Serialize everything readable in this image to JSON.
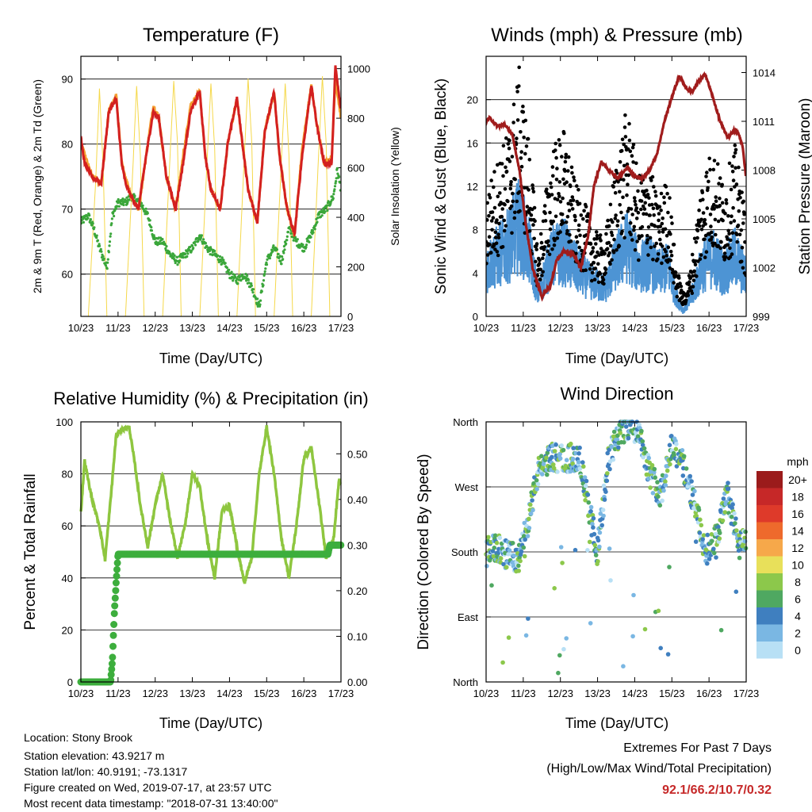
{
  "x_ticks": [
    "10/23",
    "11/23",
    "12/23",
    "13/23",
    "14/23",
    "15/23",
    "16/23",
    "17/23"
  ],
  "x_label": "Time (Day/UTC)",
  "panels": {
    "temp": {
      "title": "Temperature (F)",
      "ylabel_left": "2m & 9m T (Red, Orange) & 2m Td (Green)",
      "ylabel_right": "Solar Insolation (Yellow)",
      "y_ticks": [
        60,
        70,
        80,
        90
      ],
      "y2_ticks": [
        0,
        200,
        400,
        600,
        800,
        1000
      ]
    },
    "wind": {
      "title": "Winds (mph) & Pressure (mb)",
      "ylabel_left": "Sonic Wind & Gust (Blue, Black)",
      "ylabel_right": "Station Pressure (Maroon)",
      "y_ticks": [
        0,
        4,
        8,
        12,
        16,
        20
      ],
      "y2_ticks": [
        999,
        1002,
        1005,
        1008,
        1011,
        1014
      ]
    },
    "rh": {
      "title": "Relative Humidity (%) & Precipitation (in)",
      "ylabel_left": "Percent & Total Rainfall",
      "y_ticks": [
        0,
        20,
        40,
        60,
        80,
        100
      ],
      "y2_ticks": [
        "0.00",
        "0.10",
        "0.20",
        "0.30",
        "0.40",
        "0.50"
      ]
    },
    "dir": {
      "title": "Wind Direction",
      "ylabel_left": "Direction (Colored By Speed)",
      "y_ticks": [
        "North",
        "East",
        "South",
        "West",
        "North"
      ],
      "legend_title": "mph",
      "legend_labels": [
        "20+",
        "18",
        "16",
        "14",
        "12",
        "10",
        "8",
        "6",
        "4",
        "2",
        "0"
      ]
    }
  },
  "colors": {
    "temp_2m": "#d32020",
    "temp_9m": "#f4a030",
    "dewpoint": "#3aa63a",
    "solar": "#f5d84a",
    "wind": "#4d94d4",
    "gust": "#000000",
    "pressure": "#a01c1c",
    "rh": "#8ec63f",
    "precip": "#3dae3d",
    "speed_scale": [
      "#9b1b1b",
      "#c62828",
      "#de3a2a",
      "#ee6a2c",
      "#f6a84a",
      "#e8e05a",
      "#8cc84b",
      "#4fa861",
      "#3f7fbf",
      "#7ab7e3",
      "#b8e0f5"
    ]
  },
  "chart_data": [
    {
      "type": "line",
      "title": "Temperature (F)",
      "xlabel": "Time (Day/UTC)",
      "ylabel": "2m & 9m T (Red, Orange) & 2m Td (Green)",
      "y2label": "Solar Insolation (Yellow)",
      "x_range": [
        23,
        30
      ],
      "ylim": [
        53.5,
        93.5
      ],
      "y2lim": [
        0,
        1050
      ],
      "series": [
        {
          "x": [
            23.0,
            23.1,
            23.3,
            23.55,
            23.75,
            23.95,
            24.1,
            24.2,
            24.35,
            24.55,
            24.75,
            24.95,
            25.1,
            25.3,
            25.55,
            25.75,
            25.95,
            26.2,
            26.35,
            26.5,
            26.75,
            26.95,
            27.2,
            27.35,
            27.5,
            27.75,
            27.95,
            28.2,
            28.35,
            28.55,
            28.75,
            28.95,
            29.2,
            29.35,
            29.55,
            29.75,
            29.85,
            30.0
          ],
          "y": [
            81,
            77,
            75,
            74,
            85,
            87,
            77,
            74,
            72,
            70,
            78,
            85,
            84,
            75,
            70,
            77,
            85,
            88,
            78,
            73,
            70,
            80,
            87,
            80,
            73,
            68,
            82,
            88,
            78,
            70,
            66,
            78,
            89,
            83,
            77,
            77,
            92,
            85
          ]
        },
        {
          "x": [
            23.0,
            23.3,
            23.55,
            23.75,
            23.95,
            24.1,
            24.35,
            24.55,
            24.75,
            24.95,
            25.1,
            25.3,
            25.55,
            25.75,
            25.95,
            26.2,
            26.35,
            26.5,
            26.75,
            26.95,
            27.2,
            27.35,
            27.5,
            27.75,
            27.95,
            28.2,
            28.35,
            28.55,
            28.75,
            28.95,
            29.2,
            29.35,
            29.55,
            29.75,
            29.85,
            30.0
          ],
          "y": [
            80,
            75,
            74,
            85,
            87.5,
            77,
            72,
            70,
            78,
            86,
            84,
            75,
            70,
            78,
            86,
            88,
            78,
            73,
            70,
            80,
            87,
            80,
            73,
            68,
            82,
            88,
            78,
            70,
            66,
            79,
            89,
            83,
            77,
            78,
            90,
            84
          ]
        },
        {
          "x": [
            23.0,
            23.2,
            23.35,
            23.5,
            23.7,
            23.85,
            24.0,
            24.2,
            24.35,
            24.6,
            24.8,
            25.0,
            25.2,
            25.4,
            25.6,
            25.8,
            26.0,
            26.2,
            26.4,
            26.6,
            26.8,
            27.0,
            27.2,
            27.4,
            27.6,
            27.8,
            28.0,
            28.2,
            28.4,
            28.6,
            28.8,
            29.0,
            29.2,
            29.4,
            29.6,
            29.8,
            29.9,
            30.0
          ],
          "y": [
            68,
            69,
            67,
            64,
            61,
            69,
            71,
            71,
            72,
            71,
            69,
            65,
            65,
            63,
            62,
            63,
            64,
            66,
            64,
            63,
            62,
            60,
            59,
            60,
            58,
            55,
            62,
            64,
            62,
            67,
            65,
            64,
            66,
            69,
            70,
            72,
            76,
            73
          ]
        },
        {
          "x": [
            23.0,
            23.2,
            23.4,
            23.5,
            23.6,
            23.7,
            24.2,
            24.4,
            24.5,
            24.6,
            24.7,
            25.2,
            25.4,
            25.5,
            25.6,
            25.7,
            26.2,
            26.4,
            26.5,
            26.6,
            26.7,
            27.2,
            27.4,
            27.5,
            27.6,
            27.7,
            28.2,
            28.4,
            28.5,
            28.6,
            28.7,
            29.2,
            29.4,
            29.5,
            29.6,
            29.7
          ],
          "y": [
            0,
            0,
            550,
            920,
            600,
            0,
            0,
            600,
            930,
            650,
            0,
            0,
            650,
            950,
            700,
            0,
            0,
            640,
            940,
            680,
            0,
            0,
            650,
            960,
            700,
            0,
            0,
            640,
            940,
            650,
            0,
            0,
            660,
            970,
            700,
            0
          ]
        }
      ]
    },
    {
      "type": "line",
      "title": "Winds (mph) & Pressure (mb)",
      "xlabel": "Time (Day/UTC)",
      "ylabel": "Sonic Wind & Gust (Blue, Black)",
      "y2label": "Station Pressure (Maroon)",
      "x_range": [
        23,
        30
      ],
      "ylim": [
        0,
        24
      ],
      "y2lim": [
        999,
        1015
      ],
      "series": [
        {
          "x": [
            23.0,
            23.3,
            23.6,
            23.9,
            24.2,
            24.4,
            24.6,
            24.8,
            25.1,
            25.4,
            25.7,
            25.9,
            26.2,
            26.5,
            26.8,
            27.1,
            27.4,
            27.6,
            27.9,
            28.1,
            28.3,
            28.5,
            28.8,
            29.1,
            29.4,
            29.7,
            30.0
          ],
          "y": [
            4.5,
            5.5,
            6.5,
            8.5,
            5.5,
            2.0,
            4.0,
            5.5,
            6.0,
            4.5,
            3.5,
            3.0,
            2.5,
            5.0,
            6.5,
            4.5,
            5.0,
            4.0,
            4.5,
            2.0,
            0.5,
            1.5,
            4.5,
            5.5,
            4.0,
            5.5,
            3.5
          ]
        },
        {
          "x": [
            23.0,
            23.3,
            23.6,
            23.9,
            24.2,
            24.4,
            24.6,
            24.8,
            25.1,
            25.4,
            25.7,
            25.9,
            26.2,
            26.5,
            26.8,
            27.1,
            27.4,
            27.6,
            27.9,
            28.1,
            28.3,
            28.5,
            28.8,
            29.1,
            29.4,
            29.7,
            30.0
          ],
          "y": [
            8.0,
            10.0,
            12.0,
            16.0,
            10.5,
            4.0,
            8.0,
            11.0,
            12.0,
            8.5,
            7.0,
            5.5,
            5.0,
            10.0,
            13.5,
            9.0,
            10.0,
            7.5,
            9.0,
            3.5,
            1.5,
            3.0,
            9.0,
            11.0,
            8.5,
            11.0,
            6.5
          ]
        },
        {
          "x": [
            23.0,
            23.1,
            23.3,
            23.5,
            23.7,
            23.9,
            24.05,
            24.25,
            24.5,
            24.75,
            24.9,
            25.1,
            25.35,
            25.55,
            25.75,
            25.9,
            26.1,
            26.3,
            26.55,
            26.8,
            27.0,
            27.2,
            27.4,
            27.6,
            27.8,
            28.0,
            28.2,
            28.4,
            28.55,
            28.7,
            28.9,
            29.1,
            29.3,
            29.5,
            29.7,
            29.8,
            29.9,
            30.0
          ],
          "y": [
            1011,
            1011.2,
            1010.7,
            1010.8,
            1010.2,
            1008,
            1005,
            1002,
            1000.2,
            1001,
            1002.5,
            1003,
            1002.8,
            1002,
            1004,
            1007,
            1008.5,
            1008,
            1007.5,
            1008.2,
            1007.6,
            1007.5,
            1008,
            1009,
            1011,
            1012.5,
            1013.8,
            1013,
            1012.8,
            1013.4,
            1013.9,
            1012.5,
            1011,
            1010,
            1010.5,
            1010.2,
            1009.5,
            1007.5
          ]
        }
      ]
    },
    {
      "type": "line",
      "title": "Relative Humidity (%) & Precipitation (in)",
      "xlabel": "Time (Day/UTC)",
      "ylabel": "Percent & Total Rainfall",
      "x_range": [
        23,
        30
      ],
      "ylim": [
        0,
        100
      ],
      "y2lim": [
        0,
        0.57
      ],
      "series": [
        {
          "x": [
            23.0,
            23.1,
            23.3,
            23.5,
            23.65,
            23.8,
            23.95,
            24.1,
            24.3,
            24.45,
            24.6,
            24.8,
            25.0,
            25.2,
            25.4,
            25.6,
            25.8,
            26.0,
            26.2,
            26.4,
            26.6,
            26.8,
            27.0,
            27.2,
            27.4,
            27.6,
            27.8,
            28.0,
            28.2,
            28.4,
            28.6,
            28.8,
            29.0,
            29.2,
            29.4,
            29.6,
            29.8,
            29.95,
            30.0
          ],
          "y": [
            65,
            85,
            70,
            60,
            47,
            70,
            95,
            97,
            98,
            84,
            68,
            52,
            68,
            80,
            62,
            48,
            60,
            80,
            75,
            55,
            40,
            66,
            68,
            52,
            38,
            48,
            80,
            98,
            80,
            55,
            40,
            60,
            86,
            90,
            70,
            48,
            55,
            78,
            76
          ]
        },
        {
          "x": [
            23.0,
            23.7,
            23.8,
            23.85,
            23.9,
            23.95,
            24.0,
            24.3,
            25.0,
            26.0,
            27.0,
            28.0,
            29.0,
            29.65,
            29.7,
            30.0
          ],
          "y": [
            0.0,
            0.0,
            0.0,
            0.05,
            0.15,
            0.22,
            0.28,
            0.28,
            0.28,
            0.28,
            0.28,
            0.28,
            0.28,
            0.28,
            0.3,
            0.3
          ]
        }
      ]
    },
    {
      "type": "scatter",
      "title": "Wind Direction",
      "xlabel": "Time (Day/UTC)",
      "ylabel": "Direction (Colored By Speed)",
      "x_range": [
        23,
        30
      ],
      "ylim": [
        0,
        360
      ],
      "legend_title": "mph",
      "series": [
        {
          "x": [
            23.0,
            23.3,
            23.6,
            23.9,
            24.2,
            24.4,
            24.7,
            25.0,
            25.3,
            25.5,
            25.8,
            26.0,
            26.3,
            26.6,
            26.8,
            27.1,
            27.4,
            27.7,
            28.0,
            28.3,
            28.6,
            28.9,
            29.2,
            29.5,
            29.8
          ],
          "y": [
            180,
            185,
            175,
            170,
            240,
            290,
            310,
            310,
            310,
            315,
            230,
            180,
            310,
            345,
            355,
            350,
            290,
            260,
            330,
            300,
            250,
            180,
            200,
            260,
            190
          ]
        }
      ]
    }
  ],
  "footer": {
    "location": "Location: Stony Brook",
    "elevation": "Station elevation: 43.9217 m",
    "latlon": "Station lat/lon: 40.9191; -73.1317",
    "created": "Figure created on Wed, 2019-07-17, at 23:57 UTC",
    "latest": "Most recent data timestamp: \"2018-07-31 13:40:00\"",
    "extremes_title": "Extremes For Past 7 Days",
    "extremes_sub": "(High/Low/Max Wind/Total Precipitation)",
    "extremes_values": "92.1/66.2/10.7/0.32"
  }
}
